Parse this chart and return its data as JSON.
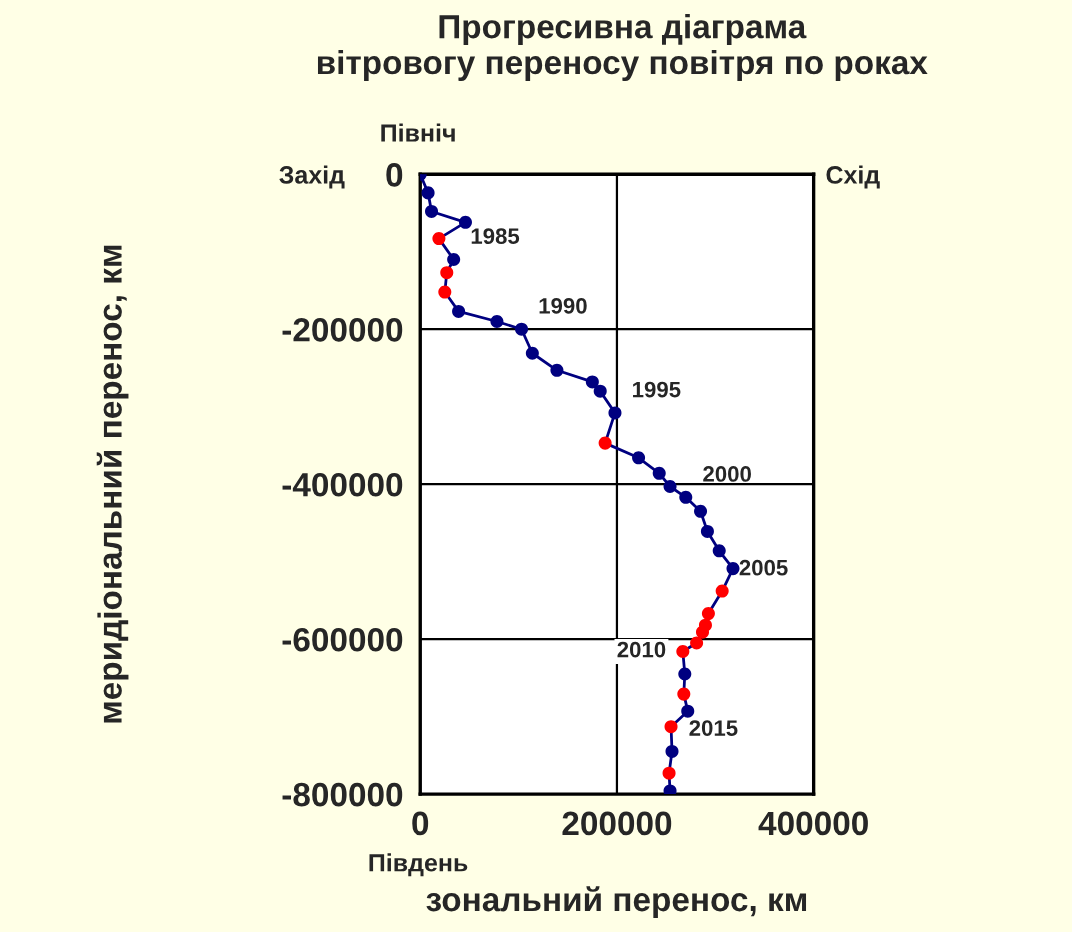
{
  "chart_data": {
    "type": "line",
    "title": "Прогресивна діаграма\nвітровогу переносу повітря по роках",
    "xlabel": "зональний перенос, км",
    "ylabel": "меридіональний перенос, км",
    "xlim": [
      0,
      400000
    ],
    "xticks": [
      0,
      200000,
      400000
    ],
    "ylim": [
      -800000,
      0
    ],
    "yticks": [
      0,
      -200000,
      -400000,
      -600000,
      -800000
    ],
    "grid": true,
    "marker": "circle",
    "line_style": "solid",
    "series": [
      {
        "color": "#000080",
        "x": [
          0,
          8000,
          11500,
          46000,
          19000,
          34000,
          27000,
          25000,
          39000,
          78000,
          103000,
          114000,
          139000,
          175000,
          183000,
          198000,
          188000,
          222000,
          243000,
          254000,
          270000,
          285000,
          292000,
          304000,
          318000,
          307000,
          293000,
          290000,
          287000,
          281000,
          267000,
          269000,
          268000,
          272000,
          255000,
          256000,
          253000,
          254000
        ],
        "values": [
          0,
          -24000,
          -48000,
          -62000,
          -83000,
          -110000,
          -127000,
          -152000,
          -177000,
          -190000,
          -200000,
          -231000,
          -253000,
          -268000,
          -280000,
          -308000,
          -347000,
          -366000,
          -386000,
          -403000,
          -417000,
          -435000,
          -461000,
          -486000,
          -509000,
          -538000,
          -567000,
          -582000,
          -591000,
          -605000,
          -616000,
          -645000,
          -671000,
          -693000,
          -713000,
          -745000,
          -773000,
          -796000
        ],
        "colors": [
          "#000080",
          "#000080",
          "#000080",
          "#000080",
          "#ff0000",
          "#000080",
          "#ff0000",
          "#ff0000",
          "#000080",
          "#000080",
          "#000080",
          "#000080",
          "#000080",
          "#000080",
          "#000080",
          "#000080",
          "#ff0000",
          "#000080",
          "#000080",
          "#000080",
          "#000080",
          "#000080",
          "#000080",
          "#000080",
          "#000080",
          "#ff0000",
          "#ff0000",
          "#ff0000",
          "#ff0000",
          "#ff0000",
          "#ff0000",
          "#000080",
          "#ff0000",
          "#000080",
          "#ff0000",
          "#000080",
          "#ff0000",
          "#000080"
        ]
      }
    ],
    "annotations": [
      {
        "text": "1985",
        "x": 34000,
        "y": -110000
      },
      {
        "text": "1990",
        "x": 103000,
        "y": -200000
      },
      {
        "text": "1995",
        "x": 198000,
        "y": -308000
      },
      {
        "text": "2000",
        "x": 270000,
        "y": -417000
      },
      {
        "text": "2005",
        "x": 307000,
        "y": -538000
      },
      {
        "text": "2010",
        "x": 267000,
        "y": -616000
      },
      {
        "text": "2015",
        "x": 256000,
        "y": -745000
      },
      "Північ",
      "Південь",
      "Захід",
      "Схід"
    ]
  }
}
